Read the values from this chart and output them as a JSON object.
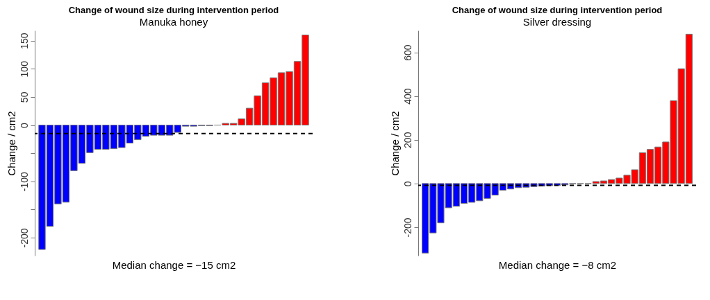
{
  "chart_data": [
    {
      "type": "bar",
      "title": "Change of wound size during intervention period",
      "subtitle": "Manuka honey",
      "xlabel": "Median change = −15 cm2",
      "ylabel": "Change / cm2",
      "categories": [
        null,
        null,
        null,
        null,
        null,
        null,
        null,
        null,
        null,
        null,
        null,
        null,
        null,
        null,
        null,
        null,
        null,
        null,
        null,
        null,
        null,
        null,
        null,
        null,
        null,
        null,
        null,
        null,
        null,
        null,
        null,
        null,
        null,
        null
      ],
      "values": [
        -221,
        -180,
        -140,
        -137,
        -81,
        -68,
        -49,
        -43,
        -43,
        -42,
        -40,
        -32,
        -26,
        -20,
        -18,
        -18,
        -18,
        -13,
        -2,
        -2,
        -1,
        -1,
        0,
        3,
        3,
        11,
        30,
        52,
        75,
        84,
        93,
        95,
        113,
        160
      ],
      "colors": [
        "#0000ff",
        "#0000ff",
        "#0000ff",
        "#0000ff",
        "#0000ff",
        "#0000ff",
        "#0000ff",
        "#0000ff",
        "#0000ff",
        "#0000ff",
        "#0000ff",
        "#0000ff",
        "#0000ff",
        "#0000ff",
        "#0000ff",
        "#0000ff",
        "#0000ff",
        "#0000ff",
        "#0000ff",
        "#0000ff",
        "#0000ff",
        "#0000ff",
        "#777777",
        "#ff0000",
        "#ff0000",
        "#ff0000",
        "#ff0000",
        "#ff0000",
        "#ff0000",
        "#ff0000",
        "#ff0000",
        "#ff0000",
        "#ff0000",
        "#ff0000"
      ],
      "ylim": [
        -232,
        168
      ],
      "yticks": [
        -200,
        {
          "value": -150,
          "label": null
        },
        -100,
        {
          "value": -50,
          "label": null
        },
        0,
        50,
        100,
        150
      ],
      "ref_lines": [
        {
          "axis": "y",
          "value": -15,
          "label": null,
          "line_style": "dashed"
        }
      ],
      "tick_labels": "y",
      "legend": false
    },
    {
      "type": "bar",
      "title": "Change of wound size during intervention period",
      "subtitle": "Silver dressing",
      "xlabel": "Median change = −8 cm2",
      "ylabel": "Change / cm2",
      "categories": [
        null,
        null,
        null,
        null,
        null,
        null,
        null,
        null,
        null,
        null,
        null,
        null,
        null,
        null,
        null,
        null,
        null,
        null,
        null,
        null,
        null,
        null,
        null,
        null,
        null,
        null,
        null,
        null,
        null,
        null,
        null,
        null,
        null,
        null,
        null
      ],
      "values": [
        -318,
        -226,
        -180,
        -111,
        -104,
        -91,
        -86,
        -79,
        -68,
        -53,
        -31,
        -25,
        -19,
        -17,
        -14,
        -12,
        -10,
        -9,
        -6,
        -2,
        0,
        0,
        9,
        12,
        18,
        25,
        38,
        63,
        141,
        156,
        167,
        190,
        379,
        525,
        683
      ],
      "colors": [
        "#0000ff",
        "#0000ff",
        "#0000ff",
        "#0000ff",
        "#0000ff",
        "#0000ff",
        "#0000ff",
        "#0000ff",
        "#0000ff",
        "#0000ff",
        "#0000ff",
        "#0000ff",
        "#0000ff",
        "#0000ff",
        "#0000ff",
        "#0000ff",
        "#0000ff",
        "#0000ff",
        "#0000ff",
        "#0000ff",
        "#777777",
        "#777777",
        "#ff0000",
        "#ff0000",
        "#ff0000",
        "#ff0000",
        "#ff0000",
        "#ff0000",
        "#ff0000",
        "#ff0000",
        "#ff0000",
        "#ff0000",
        "#ff0000",
        "#ff0000",
        "#ff0000"
      ],
      "ylim": [
        -330,
        700
      ],
      "yticks": [
        -200,
        0,
        200,
        400,
        600
      ],
      "ref_lines": [
        {
          "axis": "y",
          "value": -8,
          "label": null,
          "line_style": "dashed"
        }
      ],
      "tick_labels": "y",
      "legend": false
    }
  ]
}
